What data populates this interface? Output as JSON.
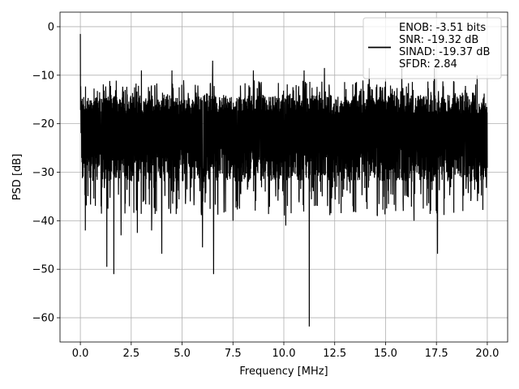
{
  "chart_data": {
    "type": "line",
    "title": "",
    "xlabel": "Frequency [MHz]",
    "ylabel": "PSD [dB]",
    "xlim": [
      -1.0,
      21.0
    ],
    "ylim": [
      -65,
      3
    ],
    "xticks": [
      0.0,
      2.5,
      5.0,
      7.5,
      10.0,
      12.5,
      15.0,
      17.5,
      20.0
    ],
    "xtick_labels": [
      "0.0",
      "2.5",
      "5.0",
      "7.5",
      "10.0",
      "12.5",
      "15.0",
      "17.5",
      "20.0"
    ],
    "yticks": [
      0,
      -10,
      -20,
      -30,
      -40,
      -50,
      -60
    ],
    "ytick_labels": [
      "0",
      "−10",
      "−20",
      "−30",
      "−40",
      "−50",
      "−60"
    ],
    "grid": true,
    "legend_position": "top-right",
    "series": [
      {
        "name": "ENOB: -3.51 bits\nSNR: -19.32 dB\nSINAD: -19.37 dB\nSFDR: 2.84",
        "color": "#000000",
        "x_range": [
          0.0,
          20.0
        ],
        "start_value": -1.5,
        "band_upper": -15,
        "band_lower": -31,
        "peaks": [
          [
            6.5,
            -7
          ],
          [
            3.0,
            -9
          ],
          [
            4.5,
            -9
          ],
          [
            8.5,
            -9
          ],
          [
            11.0,
            -9
          ],
          [
            12.0,
            -8.5
          ],
          [
            14.2,
            -8.5
          ],
          [
            15.8,
            -8.5
          ],
          [
            17.4,
            -8.5
          ],
          [
            19.5,
            -10
          ]
        ],
        "dips": [
          [
            11.25,
            -61.8
          ],
          [
            1.65,
            -51
          ],
          [
            6.55,
            -51
          ],
          [
            1.3,
            -49.5
          ],
          [
            17.55,
            -46.8
          ],
          [
            4.0,
            -46.8
          ],
          [
            6.0,
            -45.5
          ],
          [
            2.0,
            -43
          ],
          [
            19.5,
            -44
          ],
          [
            2.8,
            -42.5
          ],
          [
            0.25,
            -42
          ],
          [
            3.5,
            -42
          ],
          [
            7.5,
            -40
          ],
          [
            10.1,
            -41
          ],
          [
            16.4,
            -40
          ],
          [
            13.4,
            -37
          ],
          [
            15.5,
            -38
          ],
          [
            18.8,
            -38
          ]
        ]
      }
    ],
    "legend_lines": [
      "ENOB: -3.51 bits",
      "SNR: -19.32 dB",
      "SINAD: -19.37 dB",
      "SFDR: 2.84"
    ]
  }
}
